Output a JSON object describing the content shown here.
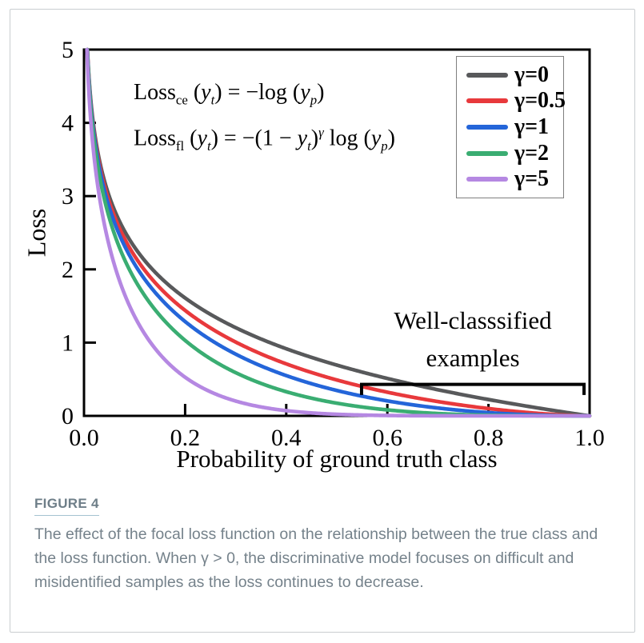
{
  "colors": {
    "axis": "#000000",
    "frame_border": "#c9cdd0",
    "legend_border": "#7f7f7f",
    "caption_text": "#75828b",
    "caption_underline": "#a5c3d1",
    "series_gray": "#58595b",
    "series_red": "#e8393c",
    "series_blue": "#2465d9",
    "series_green": "#3aad72",
    "series_purple": "#b588e2"
  },
  "chart_data": {
    "type": "line",
    "title": "",
    "xlabel": "Probability of ground truth class",
    "ylabel": "Loss",
    "xlim": [
      0,
      1
    ],
    "ylim": [
      0,
      5
    ],
    "grid": false,
    "legend_position": "top-right",
    "x_ticks": [
      "0.0",
      "0.2",
      "0.4",
      "0.6",
      "0.8",
      "1.0"
    ],
    "y_ticks": [
      "0",
      "1",
      "2",
      "3",
      "4",
      "5"
    ],
    "formula": "loss(p, gamma) = -(1 - p)^gamma * ln(p), clipped at loss = 5",
    "x_samples": [
      0.05,
      0.1,
      0.2,
      0.3,
      0.4,
      0.5,
      0.6,
      0.7,
      0.8,
      0.9,
      1.0
    ],
    "series": [
      {
        "name": "γ=0",
        "gamma": 0,
        "color": "#58595b",
        "values": [
          3.0,
          2.303,
          1.609,
          1.204,
          0.916,
          0.693,
          0.511,
          0.357,
          0.223,
          0.105,
          0
        ]
      },
      {
        "name": "γ=0.5",
        "gamma": 0.5,
        "color": "#e8393c",
        "values": [
          2.924,
          2.184,
          1.44,
          1.007,
          0.71,
          0.49,
          0.323,
          0.195,
          0.1,
          0.033,
          0
        ]
      },
      {
        "name": "γ=1",
        "gamma": 1,
        "color": "#2465d9",
        "values": [
          2.85,
          2.072,
          1.288,
          0.843,
          0.55,
          0.347,
          0.204,
          0.107,
          0.045,
          0.011,
          0
        ]
      },
      {
        "name": "γ=2",
        "gamma": 2,
        "color": "#3aad72",
        "values": [
          2.707,
          1.865,
          1.03,
          0.59,
          0.33,
          0.173,
          0.082,
          0.032,
          0.009,
          0.001,
          0
        ]
      },
      {
        "name": "γ=5",
        "gamma": 5,
        "color": "#b588e2",
        "values": [
          2.321,
          1.36,
          0.527,
          0.202,
          0.071,
          0.022,
          0.005,
          0.001,
          0.0,
          0.0,
          0
        ]
      }
    ],
    "annotations": {
      "formula_ce_html": "Loss<sub>ce</sub> (<i>y</i><sub><i>t</i></sub>) = −log (<i>y</i><sub><i>p</i></sub>)",
      "formula_fl_html": "Loss<sub>fl</sub> (<i>y</i><sub><i>t</i></sub>) = −(1 − <i>y</i><sub><i>t</i></sub>)<sup><i>γ</i></sup> log (<i>y</i><sub><i>p</i></sub>)",
      "well_classified_label": "Well-classsified\nexamples",
      "bracket": {
        "x_from": 0.549,
        "x_to": 0.989,
        "y_line": 0.43,
        "y_tick_bottom": 0.285
      }
    }
  },
  "caption": {
    "label": "FIGURE 4",
    "text": "The effect of the focal loss function on the relationship between the true class and the loss function. When γ > 0, the discriminative model focuses on difficult and misidentified samples as the loss continues to decrease."
  }
}
